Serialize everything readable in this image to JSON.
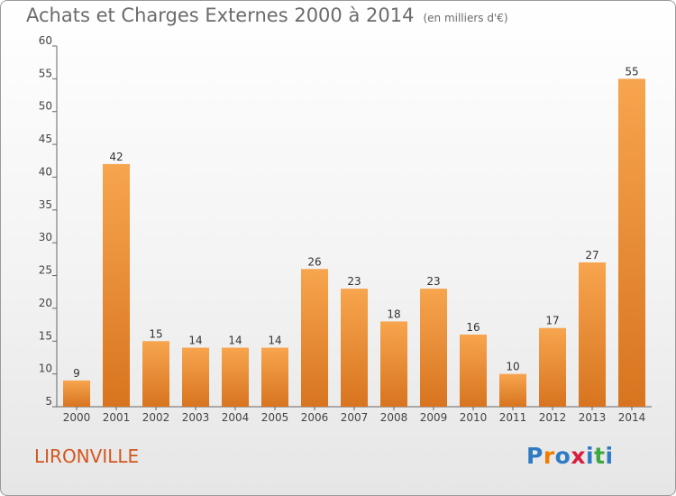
{
  "header": {
    "title": "Achats et Charges Externes 2000 à 2014",
    "subtitle": "(en milliers d'€)"
  },
  "footer": {
    "city": "LIRONVILLE",
    "logo": [
      "P",
      "r",
      "o",
      "x",
      "i",
      "t",
      "i"
    ]
  },
  "colors": {
    "bar_light": "#f7a54e",
    "bar_dark": "#d8741f",
    "city": "#d2571f",
    "logo": [
      "#2e7bc4",
      "#ef7d00",
      "#2e7bc4",
      "#d81e3c",
      "#2e7bc4",
      "#3ea83d",
      "#2e7bc4"
    ]
  },
  "chart_data": {
    "type": "bar",
    "title": "Achats et Charges Externes 2000 à 2014",
    "subtitle": "(en milliers d'€)",
    "categories": [
      "2000",
      "2001",
      "2002",
      "2003",
      "2004",
      "2005",
      "2006",
      "2007",
      "2008",
      "2009",
      "2010",
      "2011",
      "2012",
      "2013",
      "2014"
    ],
    "values": [
      9,
      42,
      15,
      14,
      14,
      14,
      26,
      23,
      18,
      23,
      16,
      10,
      17,
      27,
      55
    ],
    "ylim": [
      5,
      60
    ],
    "yticks": [
      5,
      10,
      15,
      20,
      25,
      30,
      35,
      40,
      45,
      50,
      55,
      60
    ],
    "grid": false,
    "data_labels": true
  }
}
